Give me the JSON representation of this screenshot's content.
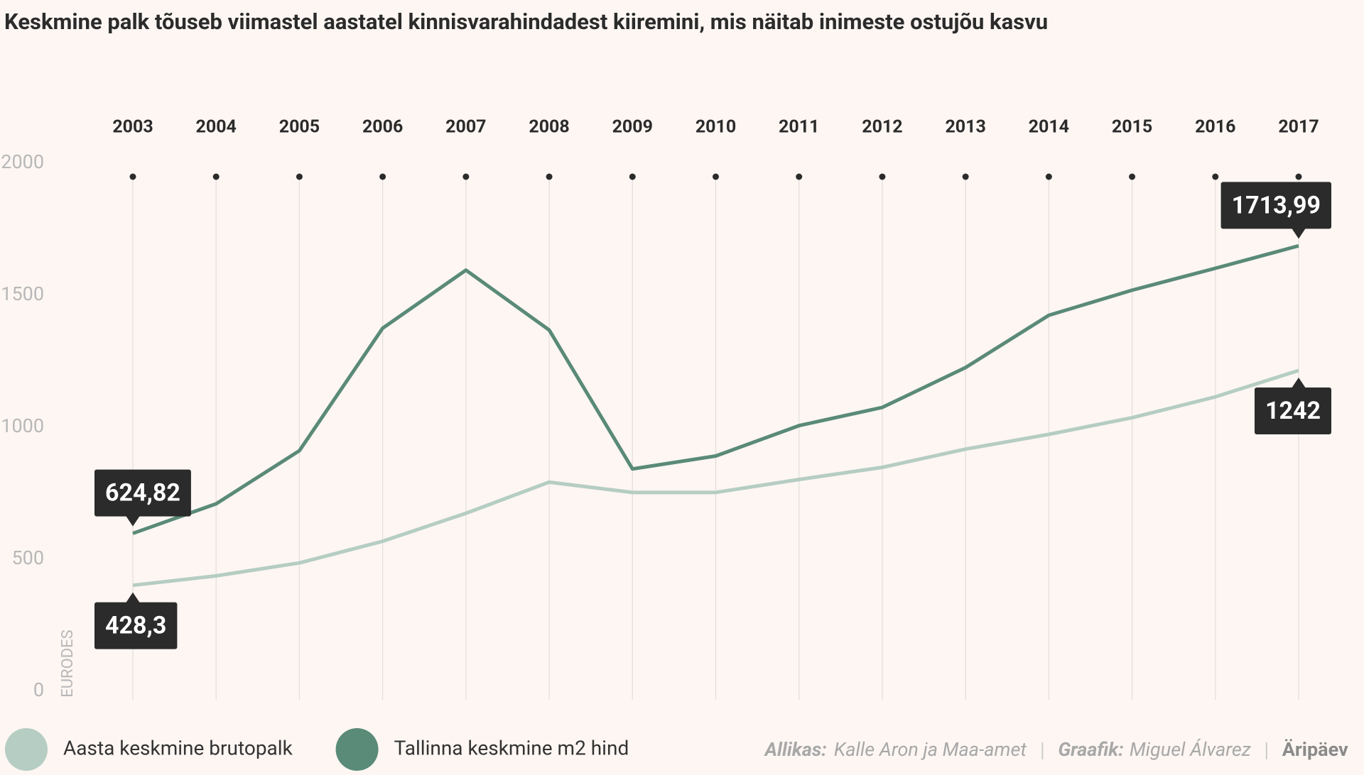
{
  "chart_data": {
    "type": "line",
    "title": "Keskmine palk tõuseb viimastel aastatel kinnisvarahindadest kiiremini, mis näitab inimeste ostujõu kasvu",
    "y_label": "EURODES",
    "categories": [
      "2003",
      "2004",
      "2005",
      "2006",
      "2007",
      "2008",
      "2009",
      "2010",
      "2011",
      "2012",
      "2013",
      "2014",
      "2015",
      "2016",
      "2017"
    ],
    "series": [
      {
        "name": "Aasta keskmine brutopalk",
        "color": "#b5cdc2",
        "values": [
          428.3,
          464,
          513,
          595,
          701,
          819,
          780,
          780,
          829,
          875,
          944,
          1000,
          1063,
          1142,
          1242
        ],
        "value_labels": [
          "428,3",
          null,
          null,
          null,
          null,
          null,
          null,
          null,
          null,
          null,
          null,
          null,
          null,
          null,
          "1242"
        ]
      },
      {
        "name": "Tallinna keskmine m2 hind",
        "color": "#5a8a78",
        "values": [
          624.82,
          737,
          938,
          1402,
          1622,
          1395,
          869,
          918,
          1033,
          1102,
          1253,
          1451,
          1546,
          1629,
          1713.99
        ],
        "value_labels": [
          "624,82",
          null,
          null,
          null,
          null,
          null,
          null,
          null,
          null,
          null,
          null,
          null,
          null,
          null,
          "1713,99"
        ]
      }
    ],
    "ylim": [
      0,
      2000
    ],
    "yticks": [
      0,
      500,
      1000,
      1500,
      2000
    ],
    "grid": true,
    "footer": {
      "source_label": "Allikas:",
      "source": "Kalle Aron ja Maa-amet",
      "credit_label": "Graafik:",
      "credit": "Miguel Álvarez",
      "publisher": "Äripäev"
    }
  }
}
